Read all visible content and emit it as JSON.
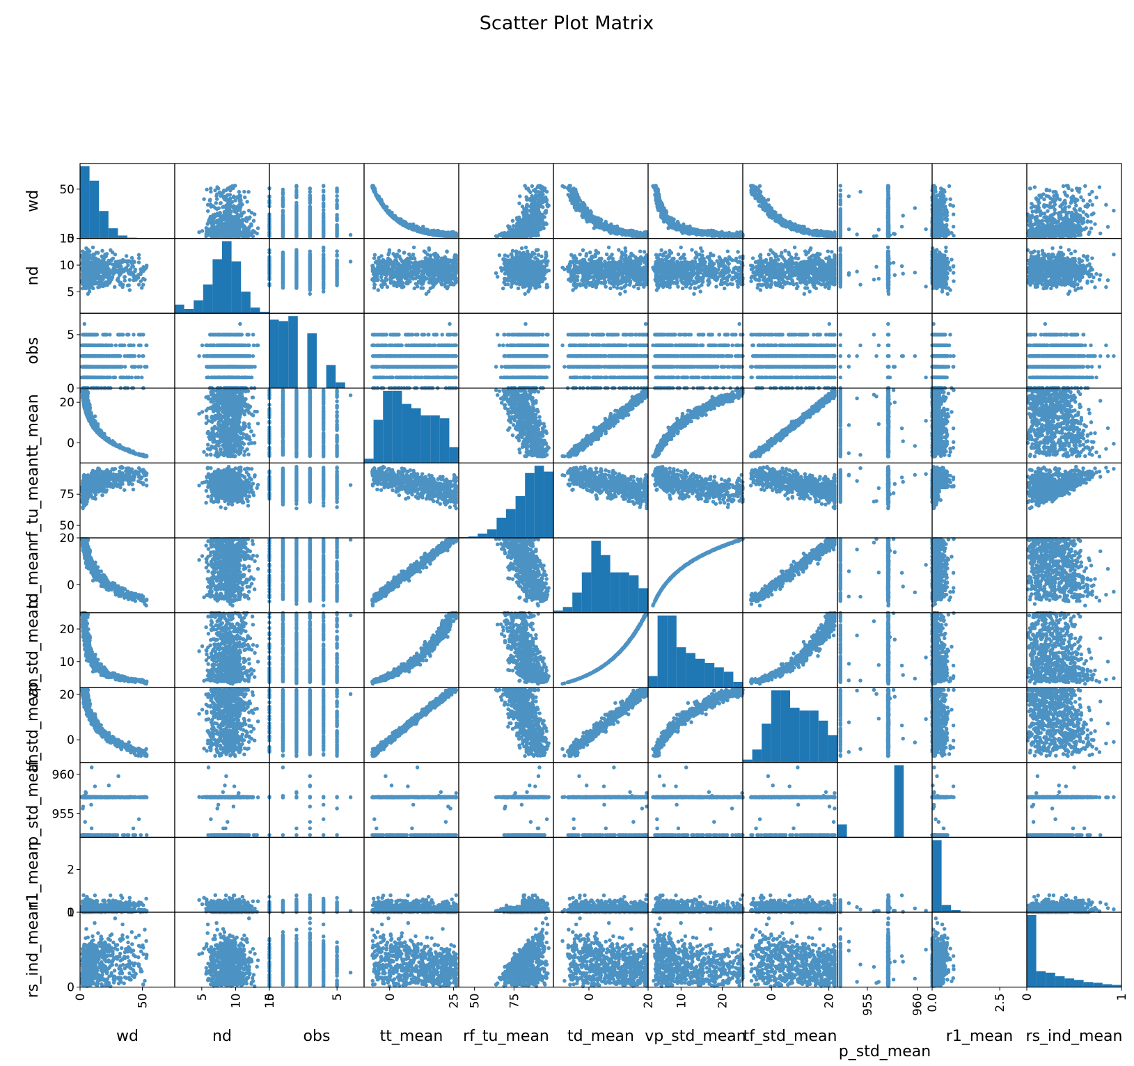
{
  "chart_data": {
    "type": "scatter",
    "title": "Scatter Plot Matrix",
    "variables": [
      "wd",
      "nd",
      "obs",
      "tt_mean",
      "rf_tu_mean",
      "td_mean",
      "vp_std_mean",
      "tf_std_mean",
      "p_std_mean",
      "r1_mean",
      "rs_ind_mean"
    ],
    "ranges": {
      "wd": [
        0,
        76
      ],
      "nd": [
        1,
        15
      ],
      "obs": [
        0,
        7
      ],
      "tt_mean": [
        -10,
        27
      ],
      "rf_tu_mean": [
        40,
        100
      ],
      "td_mean": [
        -12,
        20
      ],
      "vp_std_mean": [
        2,
        25
      ],
      "tf_std_mean": [
        -10,
        23
      ],
      "p_std_mean": [
        952,
        961.5
      ],
      "r1_mean": [
        0,
        3.5
      ],
      "rs_ind_mean": [
        0,
        1
      ]
    },
    "ticks": {
      "wd": [
        0,
        50
      ],
      "nd": [
        5,
        10,
        15
      ],
      "obs": [
        0,
        5
      ],
      "tt_mean": [
        0,
        20
      ],
      "rf_tu_mean": [
        50,
        75
      ],
      "td_mean": [
        0,
        20
      ],
      "vp_std_mean": [
        10,
        20
      ],
      "tf_std_mean": [
        0,
        20
      ],
      "p_std_mean": [
        955,
        960
      ],
      "r1_mean": [
        0,
        2
      ],
      "rs_ind_mean": [
        0,
        1
      ]
    },
    "ticks_bottom": {
      "wd": [
        "0",
        "50"
      ],
      "nd": [
        "5",
        "10",
        "15"
      ],
      "obs": [
        "0",
        "5"
      ],
      "tt_mean": [
        "0",
        "25"
      ],
      "rf_tu_mean": [
        "50",
        "75"
      ],
      "td_mean": [
        "0",
        "20"
      ],
      "vp_std_mean": [
        "10",
        "20"
      ],
      "tf_std_mean": [
        "0",
        "20"
      ],
      "p_std_mean": [
        "955",
        "960"
      ],
      "r1_mean": [
        "0.0",
        "2.5"
      ],
      "rs_ind_mean": [
        "0",
        "1"
      ]
    },
    "ticks_bottom_values": {
      "wd": [
        0,
        50
      ],
      "nd": [
        5,
        10,
        15
      ],
      "obs": [
        0,
        5
      ],
      "tt_mean": [
        0,
        25
      ],
      "rf_tu_mean": [
        50,
        75
      ],
      "td_mean": [
        0,
        20
      ],
      "vp_std_mean": [
        10,
        20
      ],
      "tf_std_mean": [
        0,
        20
      ],
      "p_std_mean": [
        955,
        960
      ],
      "r1_mean": [
        0,
        2.5
      ],
      "rs_ind_mean": [
        0,
        1
      ]
    },
    "histograms": {
      "wd": [
        100,
        80,
        38,
        14,
        4,
        1,
        0,
        0,
        0,
        0
      ],
      "nd": [
        12,
        6,
        18,
        40,
        75,
        100,
        72,
        30,
        8,
        2
      ],
      "obs": [
        95,
        93,
        100,
        0,
        76,
        0,
        32,
        8,
        0,
        0
      ],
      "tt_mean": [
        6,
        60,
        100,
        100,
        82,
        76,
        66,
        66,
        62,
        22
      ],
      "rf_tu_mean": [
        1,
        2,
        6,
        12,
        28,
        40,
        58,
        90,
        100,
        92
      ],
      "td_mean": [
        3,
        8,
        28,
        56,
        100,
        80,
        56,
        56,
        52,
        34
      ],
      "vp_std_mean": [
        16,
        100,
        100,
        56,
        48,
        40,
        34,
        28,
        22,
        8
      ],
      "tf_std_mean": [
        4,
        18,
        54,
        100,
        100,
        76,
        72,
        72,
        58,
        38
      ],
      "p_std_mean": [
        18,
        0,
        0,
        0,
        0,
        0,
        100,
        0,
        0,
        0
      ],
      "r1_mean": [
        100,
        10,
        3,
        1,
        0,
        0,
        0,
        0,
        0,
        0
      ],
      "rs_ind_mean": [
        100,
        22,
        20,
        15,
        12,
        10,
        7,
        6,
        4,
        3
      ]
    },
    "point_color": "#1f77b4",
    "diagonal": "histogram",
    "grid": false
  }
}
